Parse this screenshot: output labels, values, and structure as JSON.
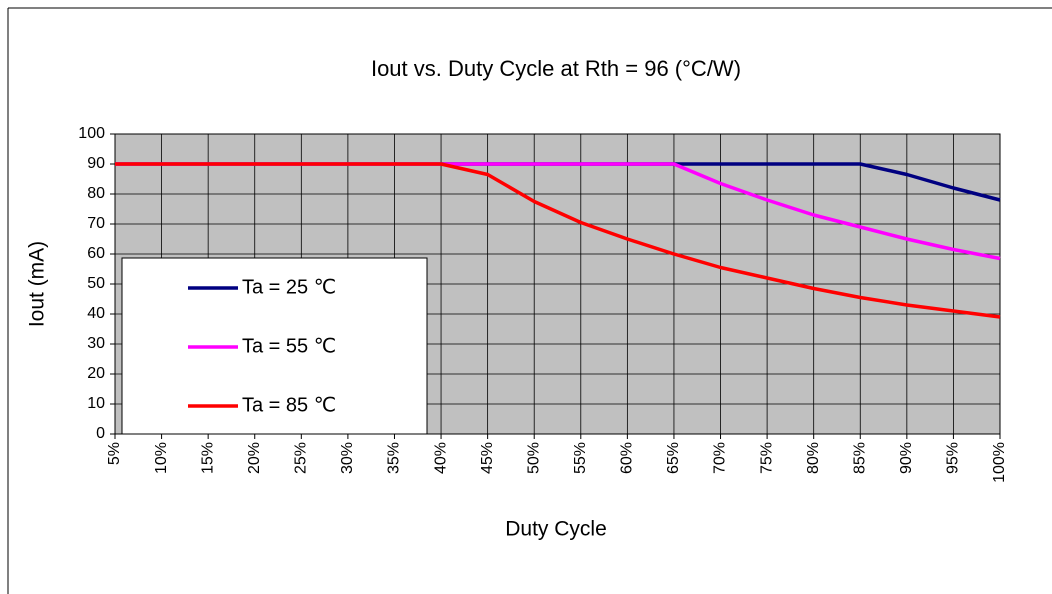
{
  "chart_data": {
    "type": "line",
    "title": "Iout vs. Duty Cycle at Rth = 96 (°C/W)",
    "x_label": "Duty Cycle",
    "y_label": "Iout (mA)",
    "categories": [
      "5%",
      "10%",
      "15%",
      "20%",
      "25%",
      "30%",
      "35%",
      "40%",
      "45%",
      "50%",
      "55%",
      "60%",
      "65%",
      "70%",
      "75%",
      "80%",
      "85%",
      "90%",
      "95%",
      "100%"
    ],
    "series": [
      {
        "name": "Ta = 25 ℃",
        "color": "#000080",
        "values": [
          90,
          90,
          90,
          90,
          90,
          90,
          90,
          90,
          90,
          90,
          90,
          90,
          90,
          90,
          90,
          90,
          90,
          86.5,
          82,
          78
        ]
      },
      {
        "name": "Ta = 55 ℃",
        "color": "#ff00ff",
        "values": [
          90,
          90,
          90,
          90,
          90,
          90,
          90,
          90,
          90,
          90,
          90,
          90,
          90,
          83.5,
          78,
          73,
          69,
          65,
          61.5,
          58.5
        ]
      },
      {
        "name": "Ta = 85 ℃",
        "color": "#ff0000",
        "values": [
          90,
          90,
          90,
          90,
          90,
          90,
          90,
          90,
          86.5,
          77.5,
          70.5,
          65,
          60,
          55.5,
          52,
          48.5,
          45.5,
          43,
          41,
          39
        ]
      }
    ],
    "ylim": [
      0,
      100
    ],
    "yticks": [
      0,
      10,
      20,
      30,
      40,
      50,
      60,
      70,
      80,
      90,
      100
    ],
    "grid": true,
    "plot_background": "#c0c0c0"
  }
}
